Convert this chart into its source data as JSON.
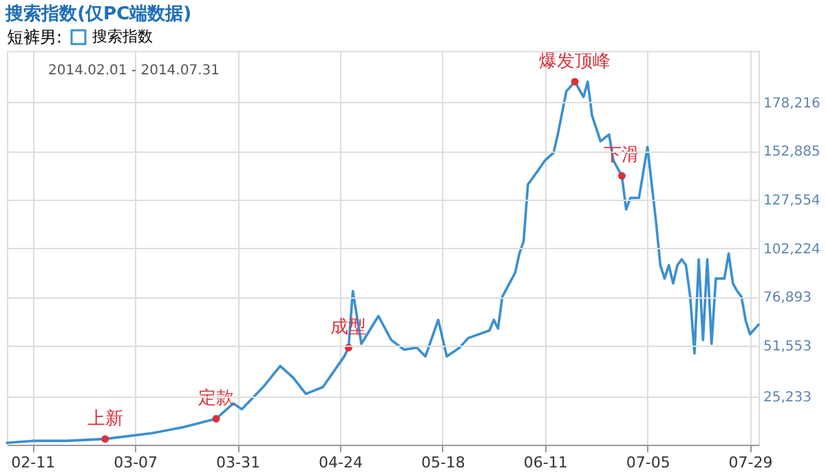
{
  "chart_data": {
    "type": "line",
    "title": "搜索指数(仅PC端数据)",
    "legend_title": "短裤男:",
    "legend": "top left",
    "grid": true,
    "marker": "none",
    "line_style": "solid",
    "x": [
      "2014-02-05",
      "2014-02-11",
      "2014-02-19",
      "2014-02-28",
      "2014-03-11",
      "2014-03-18",
      "2014-03-26",
      "2014-03-30",
      "2014-04-01",
      "2014-04-06",
      "2014-04-10",
      "2014-04-13",
      "2014-04-16",
      "2014-04-20",
      "2014-04-25",
      "2014-04-26",
      "2014-04-27",
      "2014-04-29",
      "2014-05-03",
      "2014-05-06",
      "2014-05-09",
      "2014-05-12",
      "2014-05-14",
      "2014-05-17",
      "2014-05-19",
      "2014-05-22",
      "2014-05-24",
      "2014-05-29",
      "2014-05-30",
      "2014-05-31",
      "2014-06-01",
      "2014-06-04",
      "2014-06-05",
      "2014-06-06",
      "2014-06-07",
      "2014-06-08",
      "2014-06-11",
      "2014-06-13",
      "2014-06-14",
      "2014-06-16",
      "2014-06-18",
      "2014-06-20",
      "2014-06-21",
      "2014-06-22",
      "2014-06-24",
      "2014-06-26",
      "2014-06-27",
      "2014-06-29",
      "2014-06-30",
      "2014-07-01",
      "2014-07-03",
      "2014-07-05",
      "2014-07-06",
      "2014-07-07",
      "2014-07-08",
      "2014-07-09",
      "2014-07-10",
      "2014-07-11",
      "2014-07-12",
      "2014-07-13",
      "2014-07-14",
      "2014-07-15",
      "2014-07-16",
      "2014-07-17",
      "2014-07-18",
      "2014-07-19",
      "2014-07-20",
      "2014-07-21",
      "2014-07-23",
      "2014-07-24",
      "2014-07-25",
      "2014-07-26",
      "2014-07-27",
      "2014-07-28",
      "2014-07-29",
      "2014-07-31"
    ],
    "series": [
      {
        "type": "scatter",
        "marker": "circle",
        "color": "#d9303a",
        "x": [
          "2014-02-28",
          "2014-03-26",
          "2014-04-26",
          "2014-06-18",
          "2014-06-29"
        ],
        "values": [
          3000,
          13500,
          50500,
          189000,
          140000
        ]
      },
      {
        "name": "搜索指数",
        "color": "#3a8fd0",
        "values": [
          1000,
          2000,
          2000,
          3000,
          6000,
          9000,
          13500,
          21500,
          18500,
          30000,
          41000,
          35000,
          26500,
          30000,
          46000,
          50500,
          80000,
          52500,
          67000,
          54500,
          49500,
          50500,
          46000,
          65000,
          46000,
          50500,
          55500,
          59500,
          65000,
          60500,
          77000,
          89500,
          99500,
          106000,
          135500,
          138500,
          148000,
          152000,
          161500,
          184000,
          189000,
          181000,
          189000,
          171500,
          158000,
          161500,
          148000,
          140000,
          122500,
          128500,
          128500,
          155000,
          135500,
          116000,
          93500,
          86500,
          93500,
          84000,
          93500,
          96500,
          93500,
          77000,
          47500,
          96500,
          54500,
          96500,
          52500,
          86500,
          86500,
          99500,
          84000,
          80000,
          77000,
          64500,
          57500,
          62500
        ]
      }
    ],
    "xlim": [
      "2014-02-05",
      "2014-07-31"
    ],
    "xticks": [
      {
        "value": "2014-02-11",
        "label": "02-11"
      },
      {
        "value": "2014-03-07",
        "label": "03-07"
      },
      {
        "value": "2014-03-31",
        "label": "03-31"
      },
      {
        "value": "2014-04-24",
        "label": "04-24"
      },
      {
        "value": "2014-05-18",
        "label": "05-18"
      },
      {
        "value": "2014-06-11",
        "label": "06-11"
      },
      {
        "value": "2014-07-05",
        "label": "07-05"
      },
      {
        "value": "2014-07-29",
        "label": "07-29"
      }
    ],
    "ylim": [
      0,
      205000
    ],
    "yticks": [
      {
        "value": 25233,
        "label": "25,233"
      },
      {
        "value": 51553,
        "label": "51,553"
      },
      {
        "value": 76893,
        "label": "76,893"
      },
      {
        "value": 102224,
        "label": "102,224"
      },
      {
        "value": 127554,
        "label": "127,554"
      },
      {
        "value": 152885,
        "label": "152,885"
      },
      {
        "value": 178216,
        "label": "178,216"
      }
    ],
    "annotations": [
      "2014.02.01 - 2014.07.31",
      {
        "text": "上新",
        "x": "2014-02-28",
        "y": 3000
      },
      {
        "text": "定款",
        "x": "2014-03-26",
        "y": 13500
      },
      {
        "text": "成型",
        "x": "2014-04-26",
        "y": 50500
      },
      {
        "text": "爆发顶峰",
        "x": "2014-06-18",
        "y": 189000
      },
      {
        "text": "下滑",
        "x": "2014-06-29",
        "y": 140000
      }
    ]
  }
}
